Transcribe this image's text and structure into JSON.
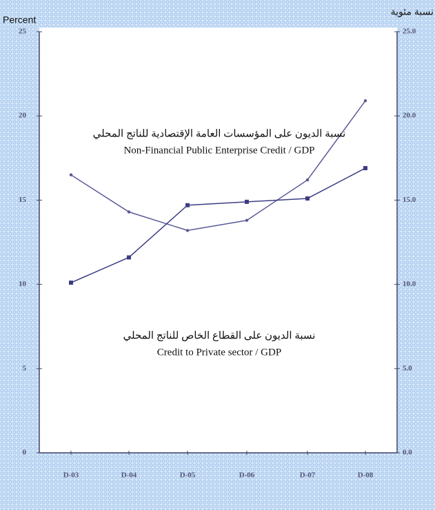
{
  "chart_data": {
    "type": "line",
    "y_label": "Percent",
    "y2_label": "نسبة مئوية",
    "categories": [
      "D-03",
      "D-04",
      "D-05",
      "D-06",
      "D-07",
      "D-08"
    ],
    "series": [
      {
        "color": "#5a5a96",
        "marker": "circle",
        "values": [
          16.5,
          14.3,
          13.2,
          13.8,
          16.2,
          20.9
        ]
      },
      {
        "color": "#3c3c84",
        "marker": "square",
        "values": [
          10.1,
          11.6,
          14.7,
          14.9,
          15.1,
          16.9
        ]
      }
    ],
    "ylim": [
      0,
      25
    ],
    "yticks": [
      0,
      5,
      10,
      15,
      20,
      25
    ],
    "y2lim": [
      0,
      25
    ],
    "y2ticks": [
      {
        "value": 0,
        "label": "0.0"
      },
      {
        "value": 5,
        "label": "5.0"
      },
      {
        "value": 10,
        "label": "10.0"
      },
      {
        "value": 15,
        "label": "15.0"
      },
      {
        "value": 20,
        "label": "20.0"
      },
      {
        "value": 25,
        "label": "25.0"
      }
    ],
    "annotations": [
      {
        "lines": [
          "نسبة الديون على المؤسسات العامة الإقتصادية للناتج المحلي",
          "Non-Financial Public Enterprise Credit / GDP"
        ]
      },
      {
        "lines": [
          "نسبة الديون على القطاع الخاص للناتج المحلي",
          "Credit to Private sector / GDP"
        ]
      }
    ]
  }
}
